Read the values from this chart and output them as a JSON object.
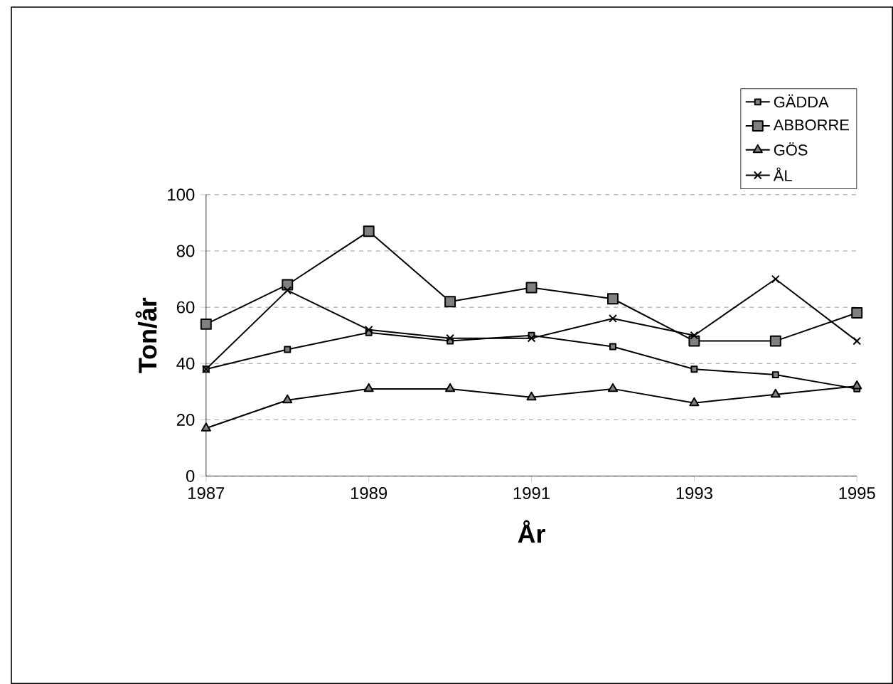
{
  "chart_data": {
    "type": "line",
    "xlabel": "År",
    "ylabel": "Ton/år",
    "x": [
      1987,
      1988,
      1989,
      1990,
      1991,
      1992,
      1993,
      1994,
      1995
    ],
    "series": [
      {
        "name": "GÄDDA",
        "color": "#000000",
        "marker": "square",
        "values": [
          38,
          45,
          51,
          48,
          50,
          46,
          38,
          36,
          31
        ]
      },
      {
        "name": "ABBORRE",
        "color": "#000000",
        "marker": "square",
        "values": [
          54,
          68,
          87,
          62,
          67,
          63,
          48,
          48,
          58
        ]
      },
      {
        "name": "GÖS",
        "color": "#000000",
        "marker": "triangle",
        "values": [
          17,
          27,
          31,
          31,
          28,
          31,
          26,
          29,
          32
        ]
      },
      {
        "name": "ÅL",
        "color": "#000000",
        "marker": "cross",
        "values": [
          38,
          66,
          52,
          49,
          49,
          56,
          50,
          70,
          48
        ]
      }
    ],
    "xlim": [
      1987,
      1995
    ],
    "xticks": [
      1987,
      1989,
      1991,
      1993,
      1995
    ],
    "ylim": [
      0,
      100
    ],
    "yticks": [
      0,
      20,
      40,
      60,
      80,
      100
    ],
    "grid": "y",
    "legend": "top right",
    "line_style": "solid"
  }
}
